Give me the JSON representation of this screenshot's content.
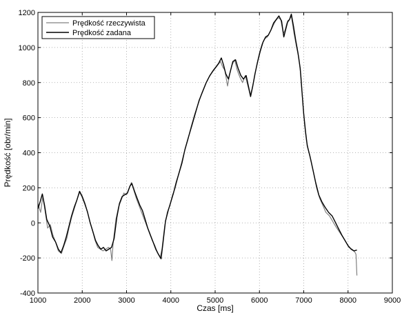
{
  "chart_data": {
    "type": "line",
    "title": "",
    "xlabel": "Czas [ms]",
    "ylabel": "Prędkość [obr/min]",
    "xlim": [
      1000,
      9000
    ],
    "ylim": [
      -400,
      1200
    ],
    "xticks": [
      1000,
      2000,
      3000,
      4000,
      5000,
      6000,
      7000,
      8000,
      9000
    ],
    "yticks": [
      -400,
      -200,
      0,
      200,
      400,
      600,
      800,
      1000,
      1200
    ],
    "grid": true,
    "legend_position": "top-left",
    "series": [
      {
        "name": "Prędkość rzeczywista",
        "color": "#808080",
        "points": [
          [
            1000,
            110
          ],
          [
            1060,
            60
          ],
          [
            1110,
            150
          ],
          [
            1160,
            70
          ],
          [
            1220,
            -30
          ],
          [
            1280,
            -10
          ],
          [
            1340,
            -70
          ],
          [
            1400,
            -110
          ],
          [
            1460,
            -160
          ],
          [
            1530,
            -175
          ],
          [
            1590,
            -130
          ],
          [
            1650,
            -90
          ],
          [
            1700,
            -30
          ],
          [
            1760,
            30
          ],
          [
            1820,
            80
          ],
          [
            1880,
            130
          ],
          [
            1940,
            175
          ],
          [
            1990,
            150
          ],
          [
            2050,
            110
          ],
          [
            2110,
            70
          ],
          [
            2170,
            10
          ],
          [
            2230,
            -40
          ],
          [
            2290,
            -100
          ],
          [
            2350,
            -140
          ],
          [
            2410,
            -150
          ],
          [
            2470,
            -160
          ],
          [
            2530,
            -150
          ],
          [
            2590,
            -140
          ],
          [
            2640,
            -150
          ],
          [
            2670,
            -215
          ],
          [
            2700,
            -110
          ],
          [
            2760,
            20
          ],
          [
            2820,
            90
          ],
          [
            2880,
            130
          ],
          [
            2940,
            170
          ],
          [
            3000,
            160
          ],
          [
            3060,
            200
          ],
          [
            3110,
            230
          ],
          [
            3160,
            190
          ],
          [
            3220,
            140
          ],
          [
            3280,
            100
          ],
          [
            3340,
            60
          ],
          [
            3400,
            20
          ],
          [
            3460,
            -20
          ],
          [
            3520,
            -60
          ],
          [
            3580,
            -100
          ],
          [
            3640,
            -130
          ],
          [
            3700,
            -170
          ],
          [
            3760,
            -195
          ],
          [
            3800,
            -150
          ],
          [
            3860,
            -20
          ],
          [
            3920,
            60
          ],
          [
            3980,
            100
          ],
          [
            4040,
            160
          ],
          [
            4100,
            200
          ],
          [
            4160,
            260
          ],
          [
            4220,
            320
          ],
          [
            4300,
            400
          ],
          [
            4380,
            470
          ],
          [
            4460,
            550
          ],
          [
            4540,
            620
          ],
          [
            4620,
            680
          ],
          [
            4700,
            740
          ],
          [
            4780,
            790
          ],
          [
            4860,
            830
          ],
          [
            4940,
            860
          ],
          [
            5000,
            880
          ],
          [
            5060,
            900
          ],
          [
            5120,
            920
          ],
          [
            5170,
            890
          ],
          [
            5220,
            870
          ],
          [
            5280,
            780
          ],
          [
            5320,
            840
          ],
          [
            5380,
            900
          ],
          [
            5440,
            930
          ],
          [
            5500,
            870
          ],
          [
            5560,
            830
          ],
          [
            5620,
            800
          ],
          [
            5680,
            840
          ],
          [
            5740,
            780
          ],
          [
            5790,
            730
          ],
          [
            5830,
            760
          ],
          [
            5880,
            820
          ],
          [
            5940,
            900
          ],
          [
            6000,
            970
          ],
          [
            6060,
            1020
          ],
          [
            6120,
            1050
          ],
          [
            6180,
            1060
          ],
          [
            6240,
            1090
          ],
          [
            6300,
            1120
          ],
          [
            6360,
            1150
          ],
          [
            6420,
            1170
          ],
          [
            6480,
            1160
          ],
          [
            6540,
            1080
          ],
          [
            6580,
            1100
          ],
          [
            6620,
            1140
          ],
          [
            6660,
            1150
          ],
          [
            6720,
            1180
          ],
          [
            6780,
            1080
          ],
          [
            6840,
            1000
          ],
          [
            6890,
            940
          ],
          [
            6940,
            830
          ],
          [
            6980,
            680
          ],
          [
            7020,
            560
          ],
          [
            7060,
            470
          ],
          [
            7100,
            420
          ],
          [
            7160,
            360
          ],
          [
            7220,
            290
          ],
          [
            7290,
            200
          ],
          [
            7360,
            140
          ],
          [
            7430,
            100
          ],
          [
            7500,
            60
          ],
          [
            7580,
            40
          ],
          [
            7650,
            10
          ],
          [
            7720,
            -20
          ],
          [
            7800,
            -50
          ],
          [
            7880,
            -80
          ],
          [
            7950,
            -110
          ],
          [
            8020,
            -140
          ],
          [
            8090,
            -150
          ],
          [
            8150,
            -165
          ],
          [
            8180,
            -180
          ],
          [
            8200,
            -300
          ]
        ]
      },
      {
        "name": "Prędkość zadana",
        "color": "#000000",
        "points": [
          [
            1000,
            80
          ],
          [
            1050,
            120
          ],
          [
            1100,
            165
          ],
          [
            1150,
            100
          ],
          [
            1200,
            20
          ],
          [
            1270,
            -20
          ],
          [
            1330,
            -80
          ],
          [
            1400,
            -110
          ],
          [
            1460,
            -150
          ],
          [
            1520,
            -170
          ],
          [
            1580,
            -130
          ],
          [
            1640,
            -80
          ],
          [
            1700,
            -20
          ],
          [
            1760,
            40
          ],
          [
            1820,
            90
          ],
          [
            1880,
            130
          ],
          [
            1940,
            180
          ],
          [
            2000,
            150
          ],
          [
            2060,
            110
          ],
          [
            2120,
            60
          ],
          [
            2180,
            0
          ],
          [
            2240,
            -50
          ],
          [
            2300,
            -100
          ],
          [
            2360,
            -130
          ],
          [
            2420,
            -150
          ],
          [
            2480,
            -140
          ],
          [
            2540,
            -160
          ],
          [
            2600,
            -150
          ],
          [
            2660,
            -140
          ],
          [
            2720,
            -90
          ],
          [
            2780,
            30
          ],
          [
            2840,
            110
          ],
          [
            2900,
            150
          ],
          [
            2960,
            160
          ],
          [
            3020,
            170
          ],
          [
            3080,
            210
          ],
          [
            3120,
            225
          ],
          [
            3180,
            180
          ],
          [
            3240,
            140
          ],
          [
            3300,
            100
          ],
          [
            3360,
            70
          ],
          [
            3420,
            20
          ],
          [
            3480,
            -30
          ],
          [
            3540,
            -70
          ],
          [
            3600,
            -110
          ],
          [
            3660,
            -150
          ],
          [
            3720,
            -180
          ],
          [
            3780,
            -205
          ],
          [
            3820,
            -120
          ],
          [
            3880,
            10
          ],
          [
            3940,
            70
          ],
          [
            4000,
            120
          ],
          [
            4060,
            170
          ],
          [
            4120,
            230
          ],
          [
            4180,
            280
          ],
          [
            4250,
            340
          ],
          [
            4320,
            420
          ],
          [
            4400,
            490
          ],
          [
            4480,
            560
          ],
          [
            4560,
            630
          ],
          [
            4640,
            700
          ],
          [
            4720,
            750
          ],
          [
            4800,
            800
          ],
          [
            4880,
            840
          ],
          [
            4960,
            870
          ],
          [
            5020,
            890
          ],
          [
            5080,
            910
          ],
          [
            5140,
            940
          ],
          [
            5190,
            900
          ],
          [
            5240,
            850
          ],
          [
            5300,
            820
          ],
          [
            5340,
            860
          ],
          [
            5400,
            920
          ],
          [
            5460,
            930
          ],
          [
            5520,
            880
          ],
          [
            5580,
            840
          ],
          [
            5640,
            820
          ],
          [
            5700,
            840
          ],
          [
            5760,
            770
          ],
          [
            5800,
            720
          ],
          [
            5850,
            780
          ],
          [
            5900,
            850
          ],
          [
            5960,
            920
          ],
          [
            6020,
            980
          ],
          [
            6080,
            1030
          ],
          [
            6140,
            1060
          ],
          [
            6200,
            1070
          ],
          [
            6260,
            1100
          ],
          [
            6320,
            1140
          ],
          [
            6380,
            1160
          ],
          [
            6440,
            1180
          ],
          [
            6500,
            1150
          ],
          [
            6550,
            1060
          ],
          [
            6600,
            1110
          ],
          [
            6640,
            1150
          ],
          [
            6680,
            1160
          ],
          [
            6720,
            1190
          ],
          [
            6770,
            1120
          ],
          [
            6820,
            1040
          ],
          [
            6870,
            970
          ],
          [
            6920,
            880
          ],
          [
            6960,
            750
          ],
          [
            7000,
            620
          ],
          [
            7040,
            520
          ],
          [
            7080,
            440
          ],
          [
            7140,
            380
          ],
          [
            7200,
            310
          ],
          [
            7270,
            230
          ],
          [
            7340,
            160
          ],
          [
            7410,
            120
          ],
          [
            7480,
            90
          ],
          [
            7560,
            60
          ],
          [
            7640,
            40
          ],
          [
            7700,
            10
          ],
          [
            7780,
            -30
          ],
          [
            7860,
            -70
          ],
          [
            7930,
            -100
          ],
          [
            8000,
            -130
          ],
          [
            8070,
            -150
          ],
          [
            8130,
            -160
          ],
          [
            8200,
            -155
          ]
        ]
      }
    ]
  }
}
